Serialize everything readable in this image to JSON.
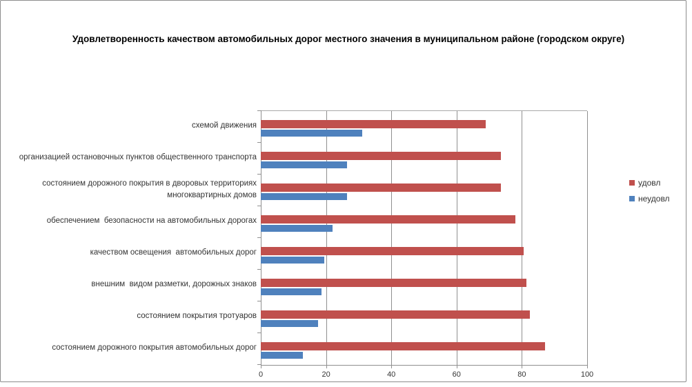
{
  "chart_data": {
    "type": "bar",
    "orientation": "horizontal",
    "title": "Удовлетворенность качеством автомобильных дорог местного значения в муниципальном районе (городском округе)",
    "categories": [
      "схемой движения",
      "организацией остановочных пунктов общественного транспорта",
      "состоянием дорожного покрытия в дворовых территориях многоквартирных домов",
      "обеспечением  безопасности на автомобильных дорогах",
      "качеством освещения  автомобильных дорог",
      "внешним  видом разметки, дорожных знаков",
      "состоянием покрытия тротуаров",
      "состоянием дорожного покрытия автомобильных дорог"
    ],
    "series": [
      {
        "name": "удовл",
        "color": "#C0504D",
        "values": [
          69,
          73.5,
          73.5,
          78,
          80.5,
          81.5,
          82.5,
          87
        ]
      },
      {
        "name": "неудовл",
        "color": "#4F81BD",
        "values": [
          31,
          26.5,
          26.5,
          22,
          19.5,
          18.5,
          17.5,
          13
        ]
      }
    ],
    "xlabel": "",
    "ylabel": "",
    "xlim": [
      0,
      100
    ],
    "xticks": [
      0,
      20,
      40,
      60,
      80,
      100
    ],
    "grid": "vertical",
    "legend_position": "right",
    "axis_color": "#8f8f8f",
    "text_color": "#333333"
  }
}
